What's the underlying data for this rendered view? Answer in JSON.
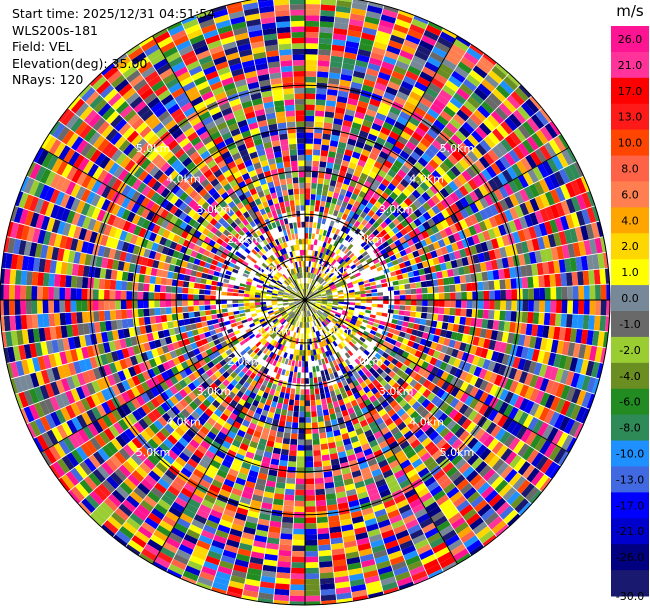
{
  "header": {
    "start_time": "Start time: 2025/12/31 04:51:54",
    "instrument": "WLS200s-181",
    "field": "Field: VEL",
    "elevation": "Elevation(deg): 35.00",
    "nrays": "NRays: 120"
  },
  "chart_data": {
    "type": "heatmap",
    "projection": "polar PPI",
    "field": "VEL",
    "units": "m/s",
    "nrays": 120,
    "elevation_deg": 35.0,
    "range_rings_km": [
      1.0,
      2.0,
      3.0,
      4.0,
      5.0
    ],
    "ring_labels": [
      "1.0km",
      "2.0km",
      "3.0km",
      "4.0km",
      "5.0km"
    ],
    "max_range_km": 7.1,
    "colorbar": {
      "unit": "m/s",
      "ticks": [
        "26.0",
        "21.0",
        "17.0",
        "13.0",
        "10.0",
        "8.0",
        "6.0",
        "4.0",
        "2.0",
        "1.0",
        "0.0",
        "-1.0",
        "-2.0",
        "-4.0",
        "-6.0",
        "-8.0",
        "-10.0",
        "-13.0",
        "-17.0",
        "-21.0",
        "-26.0",
        "-30.0"
      ],
      "bins": [
        {
          "lo": 26,
          "hi": 30,
          "color": "#ff1493"
        },
        {
          "lo": 21,
          "hi": 26,
          "color": "#ff3399"
        },
        {
          "lo": 17,
          "hi": 21,
          "color": "#ff0000"
        },
        {
          "lo": 13,
          "hi": 17,
          "color": "#ff1a1a"
        },
        {
          "lo": 10,
          "hi": 13,
          "color": "#ff4500"
        },
        {
          "lo": 8,
          "hi": 10,
          "color": "#ff6347"
        },
        {
          "lo": 6,
          "hi": 8,
          "color": "#ff7f50"
        },
        {
          "lo": 4,
          "hi": 6,
          "color": "#ffa500"
        },
        {
          "lo": 2,
          "hi": 4,
          "color": "#ffd700"
        },
        {
          "lo": 1,
          "hi": 2,
          "color": "#ffff00"
        },
        {
          "lo": 0,
          "hi": 1,
          "color": "#778899"
        },
        {
          "lo": -1,
          "hi": 0,
          "color": "#696969"
        },
        {
          "lo": -2,
          "hi": -1,
          "color": "#9acd32"
        },
        {
          "lo": -4,
          "hi": -2,
          "color": "#6b8e23"
        },
        {
          "lo": -6,
          "hi": -4,
          "color": "#228b22"
        },
        {
          "lo": -8,
          "hi": -6,
          "color": "#2e8b57"
        },
        {
          "lo": -10,
          "hi": -8,
          "color": "#1e90ff"
        },
        {
          "lo": -13,
          "hi": -10,
          "color": "#4169e1"
        },
        {
          "lo": -17,
          "hi": -13,
          "color": "#0000ff"
        },
        {
          "lo": -21,
          "hi": -17,
          "color": "#0000cd"
        },
        {
          "lo": -26,
          "hi": -21,
          "color": "#000080"
        },
        {
          "lo": -30,
          "hi": -26,
          "color": "#191970"
        }
      ]
    },
    "crosshair": {
      "angles_deg": [
        0,
        30,
        60,
        90,
        120,
        150
      ]
    }
  }
}
